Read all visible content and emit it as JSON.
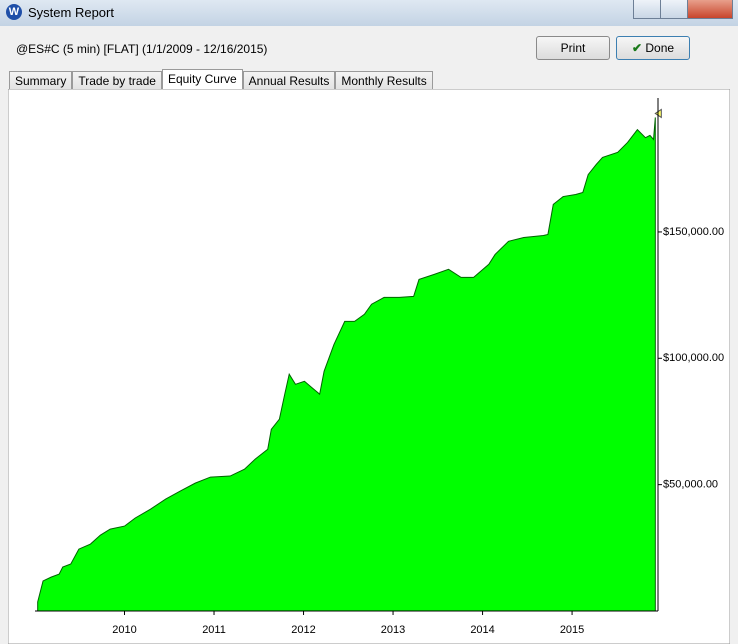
{
  "window": {
    "title": "System Report",
    "info": "@ES#C (5 min) [FLAT]  (1/1/2009 - 12/16/2015)",
    "buttons": [
      "Print",
      "Done"
    ],
    "tabs": [
      "Summary",
      "Trade by trade",
      "Equity Curve",
      "Annual Results",
      "Monthly Results"
    ]
  },
  "chart_data": {
    "type": "area",
    "color": "#00ff00",
    "line_color": "#006400",
    "x": [
      2009.03,
      2009.09,
      2009.18,
      2009.27,
      2009.31,
      2009.4,
      2009.49,
      2009.62,
      2009.73,
      2009.84,
      2010.0,
      2010.12,
      2010.29,
      2010.46,
      2010.62,
      2010.79,
      2010.96,
      2011.18,
      2011.34,
      2011.46,
      2011.6,
      2011.64,
      2011.73,
      2011.79,
      2011.84,
      2011.91,
      2012.01,
      2012.09,
      2012.18,
      2012.23,
      2012.34,
      2012.46,
      2012.57,
      2012.68,
      2012.76,
      2012.9,
      2013.07,
      2013.23,
      2013.29,
      2013.46,
      2013.62,
      2013.76,
      2013.9,
      2014.07,
      2014.14,
      2014.29,
      2014.46,
      2014.68,
      2014.73,
      2014.79,
      2014.9,
      2015.04,
      2015.12,
      2015.18,
      2015.27,
      2015.34,
      2015.51,
      2015.62,
      2015.73,
      2015.82,
      2015.87,
      2015.91,
      2015.93
    ],
    "values": [
      3600,
      11900,
      13400,
      14600,
      17400,
      18600,
      24500,
      26500,
      30000,
      32400,
      33600,
      36800,
      40300,
      44300,
      47400,
      50600,
      53000,
      53400,
      56100,
      60100,
      64000,
      71900,
      75900,
      85800,
      93700,
      89700,
      90900,
      88500,
      85800,
      94900,
      105500,
      114600,
      114600,
      117400,
      121400,
      124100,
      124100,
      124500,
      131200,
      133200,
      135200,
      132000,
      132000,
      137200,
      141100,
      146300,
      147800,
      148600,
      149000,
      160900,
      164000,
      164800,
      165600,
      172700,
      176700,
      179500,
      181500,
      185400,
      190500,
      187300,
      188200,
      186600,
      195300
    ],
    "xlim": [
      2009,
      2015.96
    ],
    "xticks": [
      2010,
      2011,
      2012,
      2013,
      2014,
      2015
    ],
    "ylim": [
      0,
      203000
    ],
    "yticks": [
      {
        "value": 50000,
        "label": "$50,000.00"
      },
      {
        "value": 100000,
        "label": "$100,000.00"
      },
      {
        "value": 150000,
        "label": "$150,000.00"
      }
    ],
    "grid": false
  }
}
